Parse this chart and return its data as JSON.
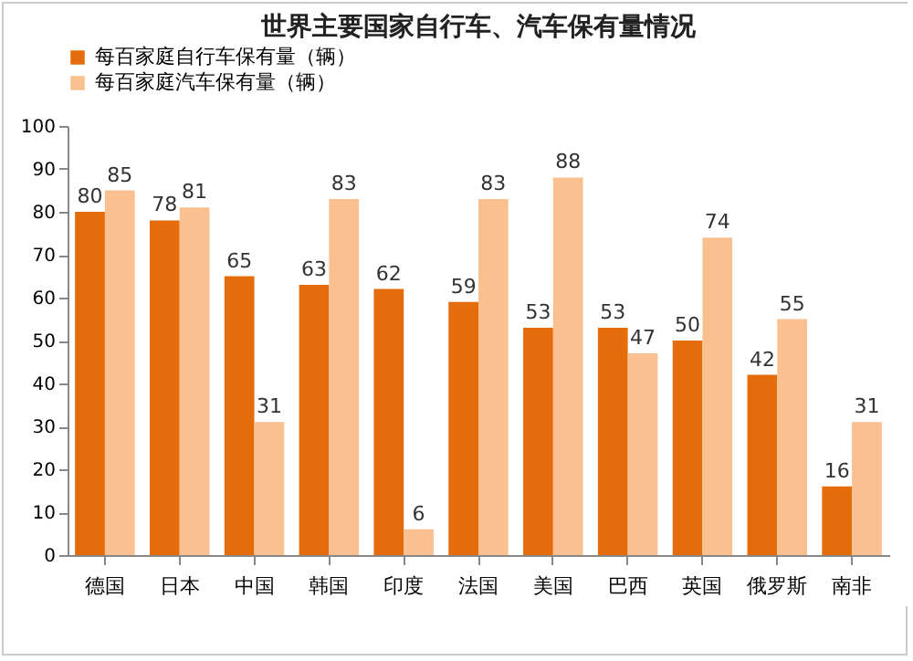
{
  "chart_data": {
    "type": "bar",
    "title": "世界主要国家自行车、汽车保有量情况",
    "categories": [
      "德国",
      "日本",
      "中国",
      "韩国",
      "印度",
      "法国",
      "美国",
      "巴西",
      "英国",
      "俄罗斯",
      "南非"
    ],
    "series": [
      {
        "name": "每百家庭自行车保有量（辆）",
        "color": "#e46c0a",
        "values": [
          80,
          78,
          65,
          63,
          62,
          59,
          53,
          53,
          50,
          42,
          16
        ]
      },
      {
        "name": "每百家庭汽车保有量（辆）",
        "color": "#fac090",
        "values": [
          85,
          81,
          31,
          83,
          6,
          83,
          88,
          47,
          74,
          55,
          31
        ]
      }
    ],
    "ylim": [
      0,
      100
    ],
    "yticks": [
      0,
      10,
      20,
      30,
      40,
      50,
      60,
      70,
      80,
      90,
      100
    ],
    "grid": false,
    "legend": "top",
    "data_labels": true
  }
}
